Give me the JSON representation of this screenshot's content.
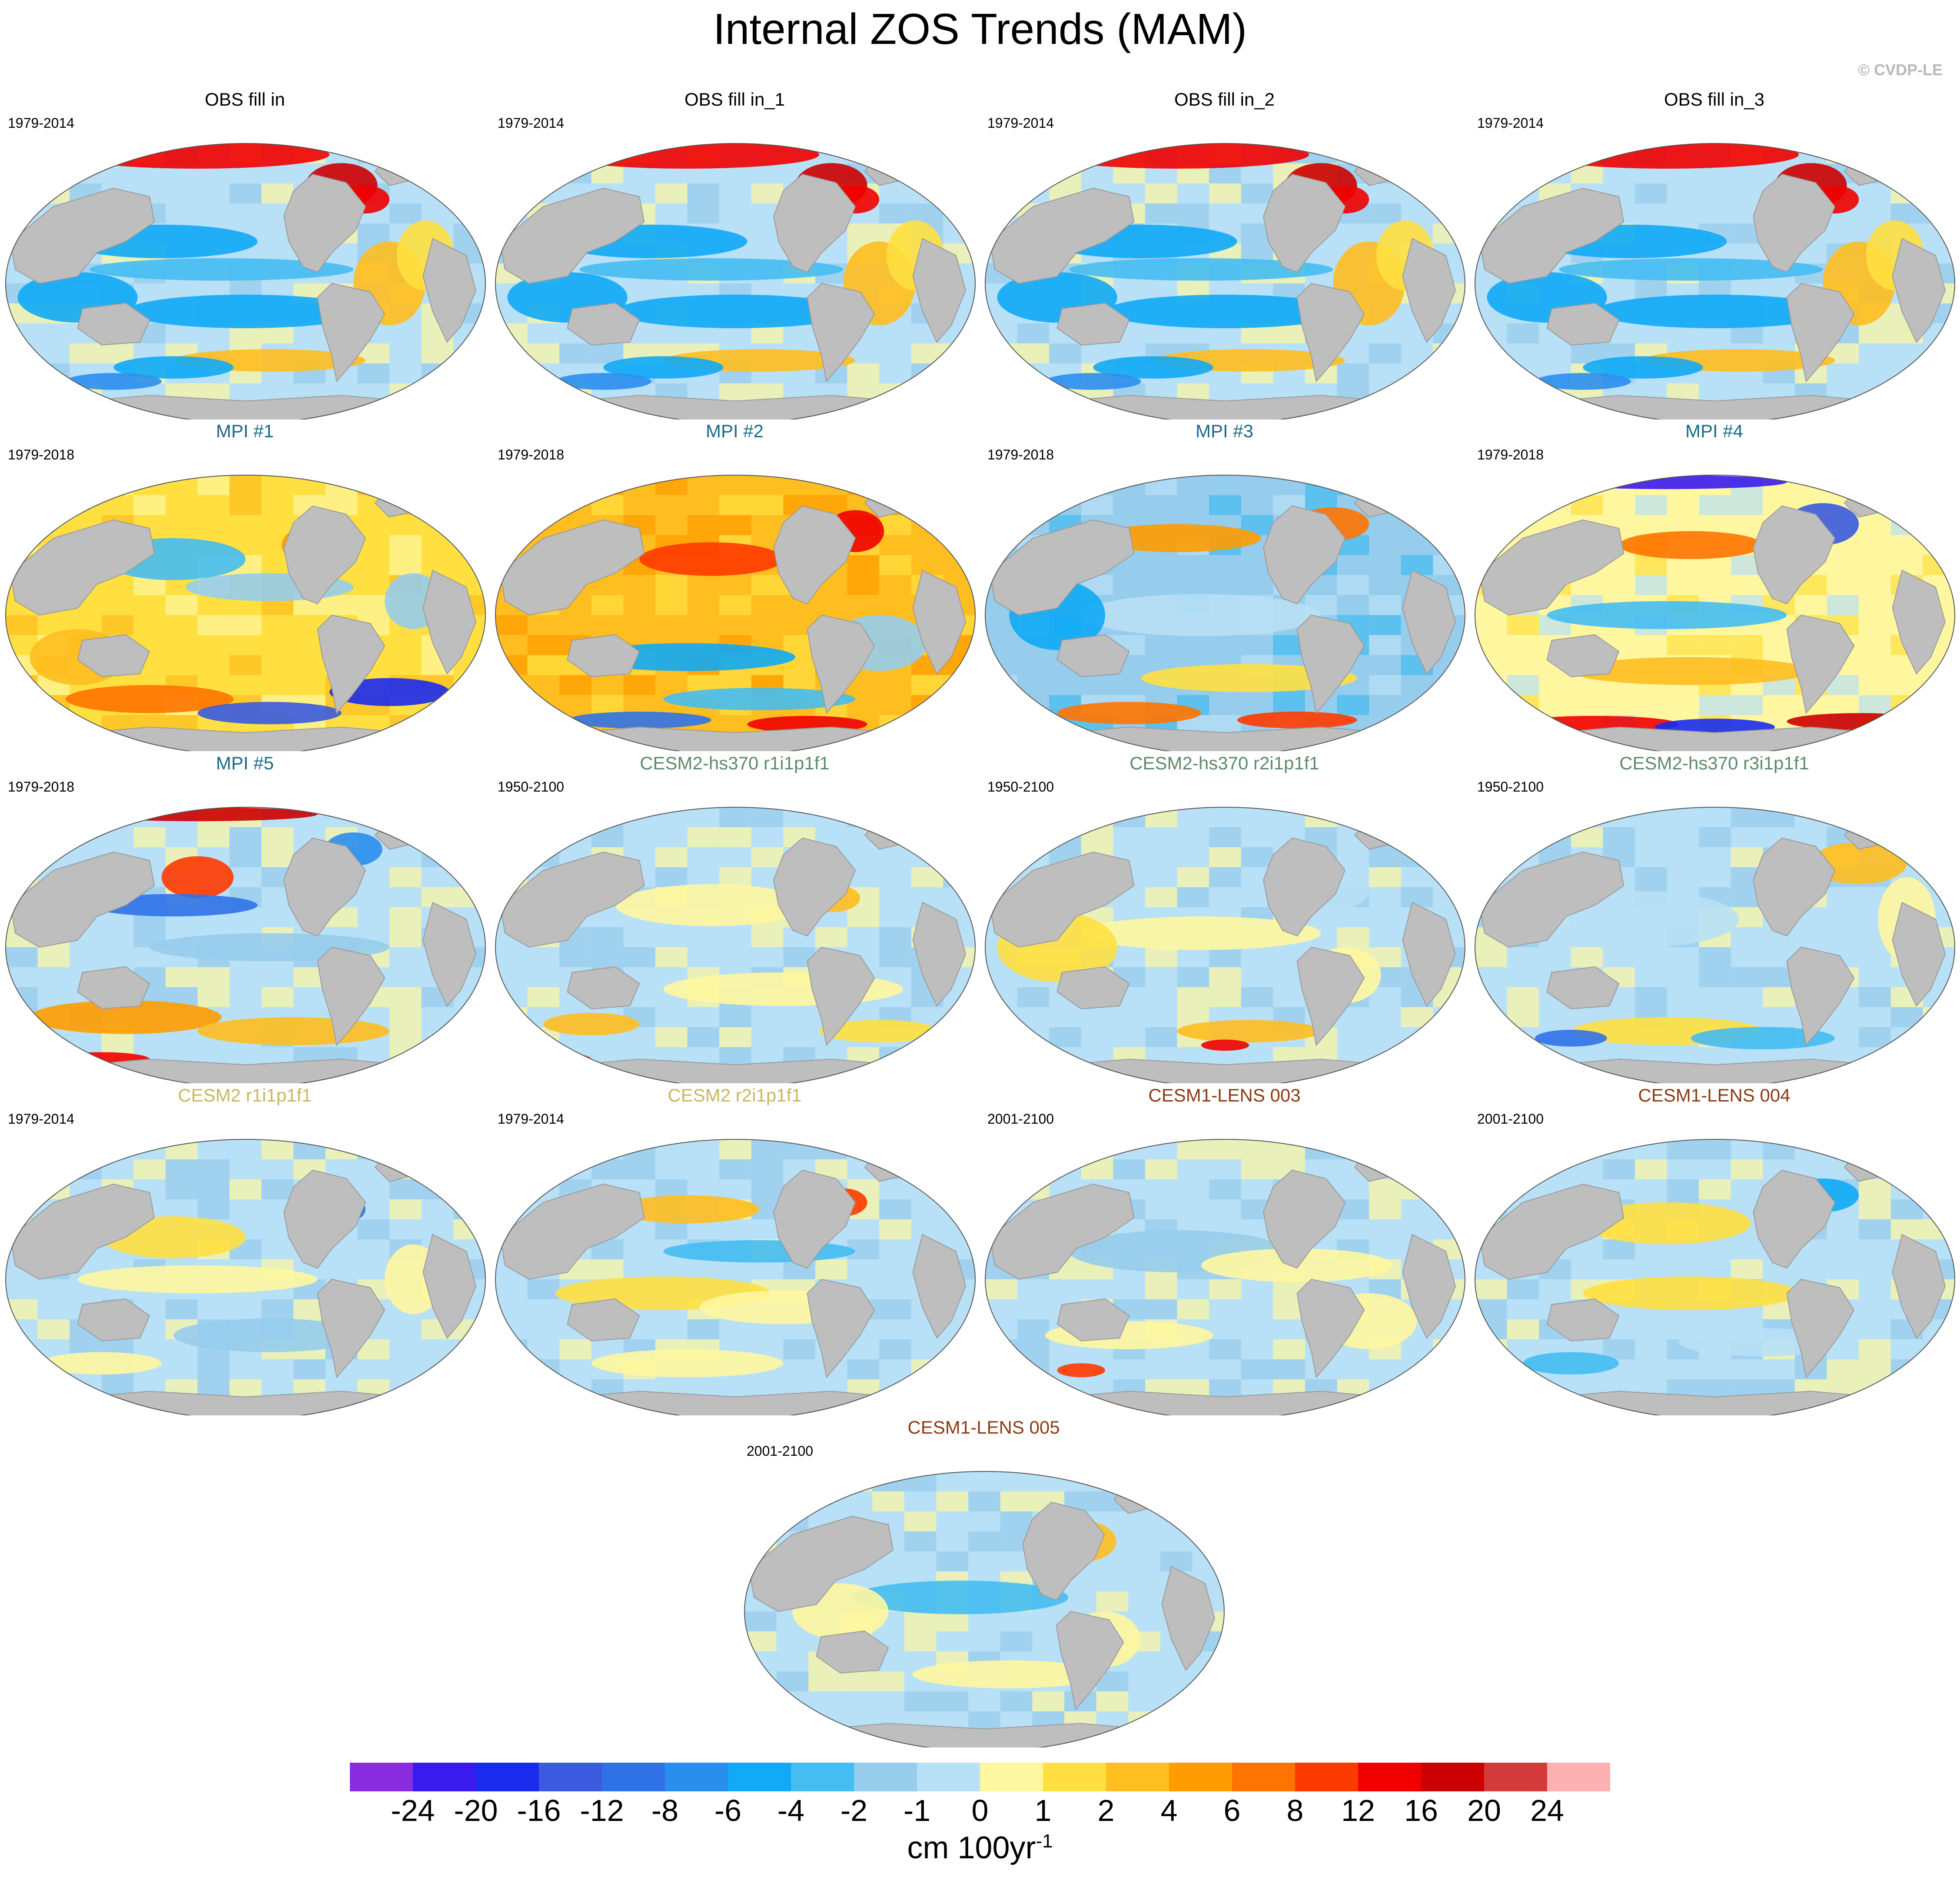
{
  "title": "Internal ZOS Trends (MAM)",
  "credit": "© CVDP-LE",
  "colors": {
    "land": "#bebebe",
    "panel_title": {
      "obs": "#000000",
      "mpi": "#1a6a8a",
      "cesm2_hs370": "#5e8a6a",
      "cesm2": "#c8b85a",
      "cesm1_lens": "#8b3a14"
    }
  },
  "panels": [
    {
      "title": "OBS fill in",
      "period": "1979-2014",
      "group": "obs",
      "pattern": "obs"
    },
    {
      "title": "OBS fill in_1",
      "period": "1979-2014",
      "group": "obs",
      "pattern": "obs"
    },
    {
      "title": "OBS fill in_2",
      "period": "1979-2014",
      "group": "obs",
      "pattern": "obs"
    },
    {
      "title": "OBS fill in_3",
      "period": "1979-2014",
      "group": "obs",
      "pattern": "obs"
    },
    {
      "title": "MPI #1",
      "period": "1979-2018",
      "group": "mpi",
      "pattern": "mpi1"
    },
    {
      "title": "MPI #2",
      "period": "1979-2018",
      "group": "mpi",
      "pattern": "mpi2"
    },
    {
      "title": "MPI #3",
      "period": "1979-2018",
      "group": "mpi",
      "pattern": "mpi3"
    },
    {
      "title": "MPI #4",
      "period": "1979-2018",
      "group": "mpi",
      "pattern": "mpi4"
    },
    {
      "title": "MPI #5",
      "period": "1979-2018",
      "group": "mpi",
      "pattern": "mpi5"
    },
    {
      "title": "CESM2-hs370 r1i1p1f1",
      "period": "1950-2100",
      "group": "cesm2_hs370",
      "pattern": "hs1"
    },
    {
      "title": "CESM2-hs370 r2i1p1f1",
      "period": "1950-2100",
      "group": "cesm2_hs370",
      "pattern": "hs2"
    },
    {
      "title": "CESM2-hs370 r3i1p1f1",
      "period": "1950-2100",
      "group": "cesm2_hs370",
      "pattern": "hs3"
    },
    {
      "title": "CESM2 r1i1p1f1",
      "period": "1979-2014",
      "group": "cesm2",
      "pattern": "c2a"
    },
    {
      "title": "CESM2 r2i1p1f1",
      "period": "1979-2014",
      "group": "cesm2",
      "pattern": "c2b"
    },
    {
      "title": "CESM1-LENS 003",
      "period": "2001-2100",
      "group": "cesm1_lens",
      "pattern": "l3"
    },
    {
      "title": "CESM1-LENS 004",
      "period": "2001-2100",
      "group": "cesm1_lens",
      "pattern": "l4"
    },
    {
      "title": "CESM1-LENS 005",
      "period": "2001-2100",
      "group": "cesm1_lens",
      "pattern": "l5"
    }
  ],
  "colorbar": {
    "labels": [
      "-24",
      "-20",
      "-16",
      "-12",
      "-8",
      "-6",
      "-4",
      "-2",
      "-1",
      "0",
      "1",
      "2",
      "4",
      "6",
      "8",
      "12",
      "16",
      "20",
      "24"
    ],
    "colors": [
      "#8a2be2",
      "#3a1aee",
      "#1a2aee",
      "#3a5ae0",
      "#2f72e8",
      "#2a8eef",
      "#10aaf6",
      "#45bcf2",
      "#96ccec",
      "#b8e0f6",
      "#fff7a0",
      "#ffe040",
      "#ffbe20",
      "#ff9c00",
      "#ff7400",
      "#ff3a00",
      "#f00000",
      "#cc0000",
      "#d43a3a",
      "#ffb0b0"
    ],
    "units_main": "cm 100yr",
    "units_sup": "-1"
  }
}
